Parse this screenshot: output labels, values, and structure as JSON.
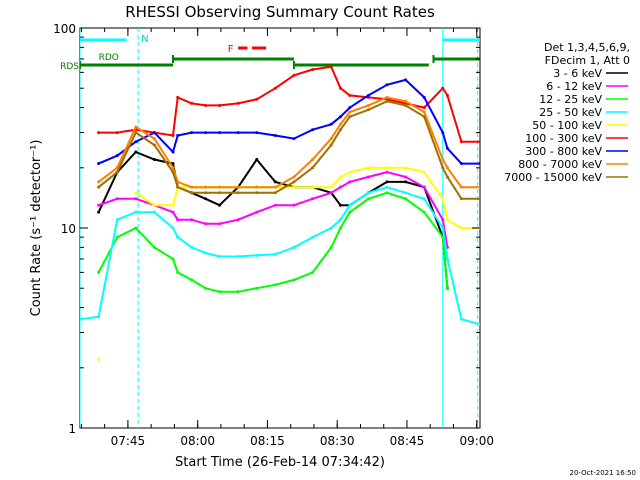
{
  "chart_data": {
    "type": "line",
    "title": "RHESSI Observing Summary Count Rates",
    "xlabel": "Start Time (26-Feb-14 07:34:42)",
    "ylabel": "Count Rate (s⁻¹ detector⁻¹)",
    "yscale": "log",
    "ylim": [
      1,
      100
    ],
    "xlim_minutes": [
      0,
      86
    ],
    "x_tick_labels": [
      "07:45",
      "08:00",
      "08:15",
      "08:30",
      "08:45",
      "09:00"
    ],
    "x_tick_minutes": [
      10.3,
      25.3,
      40.3,
      55.3,
      70.3,
      85.3
    ],
    "y_tick_labels": [
      "1",
      "10",
      "100"
    ],
    "y_tick_values": [
      1,
      10,
      100
    ],
    "legend": {
      "header": [
        "Det 1,3,4,5,6,9,",
        "FDecim 1, Att 0"
      ],
      "placement": "right"
    },
    "x": [
      0,
      4,
      8,
      12,
      16,
      20,
      21,
      24,
      27,
      30,
      34,
      38,
      42,
      46,
      50,
      54,
      56,
      58,
      62,
      66,
      70,
      74,
      78,
      79,
      82,
      86
    ],
    "series": [
      {
        "name": "3 - 6 keV",
        "color": "#000000",
        "values": [
          null,
          12,
          19,
          24,
          22,
          21,
          16,
          15,
          14,
          13,
          16,
          22,
          17,
          16,
          16,
          15,
          13,
          13,
          15,
          17,
          17,
          16,
          9,
          5,
          null,
          null
        ]
      },
      {
        "name": "6 - 12 keV",
        "color": "#ff00ff",
        "values": [
          null,
          13,
          14,
          14,
          13,
          12,
          11,
          11,
          10.5,
          10.5,
          11,
          12,
          13,
          13,
          14,
          15,
          16,
          17,
          18,
          19,
          18,
          16,
          11,
          8,
          null,
          null
        ]
      },
      {
        "name": "12 - 25 keV",
        "color": "#00ff00",
        "values": [
          null,
          6,
          9,
          10,
          8,
          7,
          6,
          5.5,
          5,
          4.8,
          4.8,
          5,
          5.2,
          5.5,
          6,
          8,
          10,
          12,
          14,
          15,
          14,
          12,
          9,
          5,
          null,
          null
        ]
      },
      {
        "name": "25 - 50 keV",
        "color": "#00ffff",
        "values": [
          3.5,
          3.6,
          11,
          12,
          12,
          10,
          9,
          8,
          7.5,
          7.2,
          7.2,
          7.3,
          7.4,
          8,
          9,
          10,
          11,
          13,
          15,
          16,
          15,
          14,
          10,
          7,
          3.5,
          3.3
        ]
      },
      {
        "name": "50 - 100 keV",
        "color": "#ffff00",
        "values": [
          null,
          2.2,
          null,
          15,
          13,
          13,
          16,
          16,
          16,
          16,
          16,
          16,
          16,
          16,
          16,
          16,
          18,
          19,
          20,
          20,
          20,
          19,
          14,
          11,
          10,
          10
        ]
      },
      {
        "name": "100 - 300 keV",
        "color": "#ff0000",
        "values": [
          null,
          30,
          30,
          31,
          30,
          29,
          45,
          42,
          41,
          41,
          42,
          44,
          50,
          58,
          62,
          64,
          50,
          46,
          45,
          44,
          42,
          40,
          50,
          46,
          27,
          27
        ]
      },
      {
        "name": "300 - 800 keV",
        "color": "#0000ff",
        "values": [
          null,
          21,
          23,
          27,
          30,
          24,
          29,
          30,
          30,
          30,
          30,
          30,
          29,
          28,
          31,
          33,
          36,
          40,
          46,
          52,
          55,
          45,
          30,
          25,
          21,
          21
        ]
      },
      {
        "name": "800 - 7000 keV",
        "color": "#ff8000",
        "values": [
          null,
          17,
          20,
          32,
          28,
          20,
          17,
          16,
          16,
          16,
          16,
          16,
          16,
          18,
          22,
          28,
          33,
          38,
          41,
          45,
          43,
          38,
          22,
          20,
          16,
          16
        ]
      },
      {
        "name": "7000 - 15000 keV",
        "color": "#a07000",
        "values": [
          null,
          16,
          19,
          30,
          26,
          19,
          16,
          15,
          15,
          15,
          15,
          15,
          15,
          17,
          20,
          26,
          31,
          36,
          39,
          43,
          41,
          36,
          20,
          18,
          14,
          14
        ]
      }
    ],
    "annotations": {
      "N_label": "N",
      "F_label": "F",
      "RDO_label": "RDO",
      "RDS_label": "RDS",
      "saa_spans_minutes": [
        [
          0,
          10
        ],
        [
          78,
          86
        ]
      ],
      "night_spans_minutes": [
        [
          0,
          12.5
        ],
        [
          78,
          85.5
        ]
      ],
      "flare_marker_minutes": [
        [
          34,
          36
        ],
        [
          37,
          40
        ]
      ],
      "rdo_bar_minutes": [
        [
          0,
          20
        ],
        [
          20,
          46
        ],
        [
          46,
          75
        ],
        [
          76,
          86
        ]
      ]
    },
    "grid": false
  },
  "footer": {
    "timestamp": "20-Oct-2021 16:50"
  }
}
